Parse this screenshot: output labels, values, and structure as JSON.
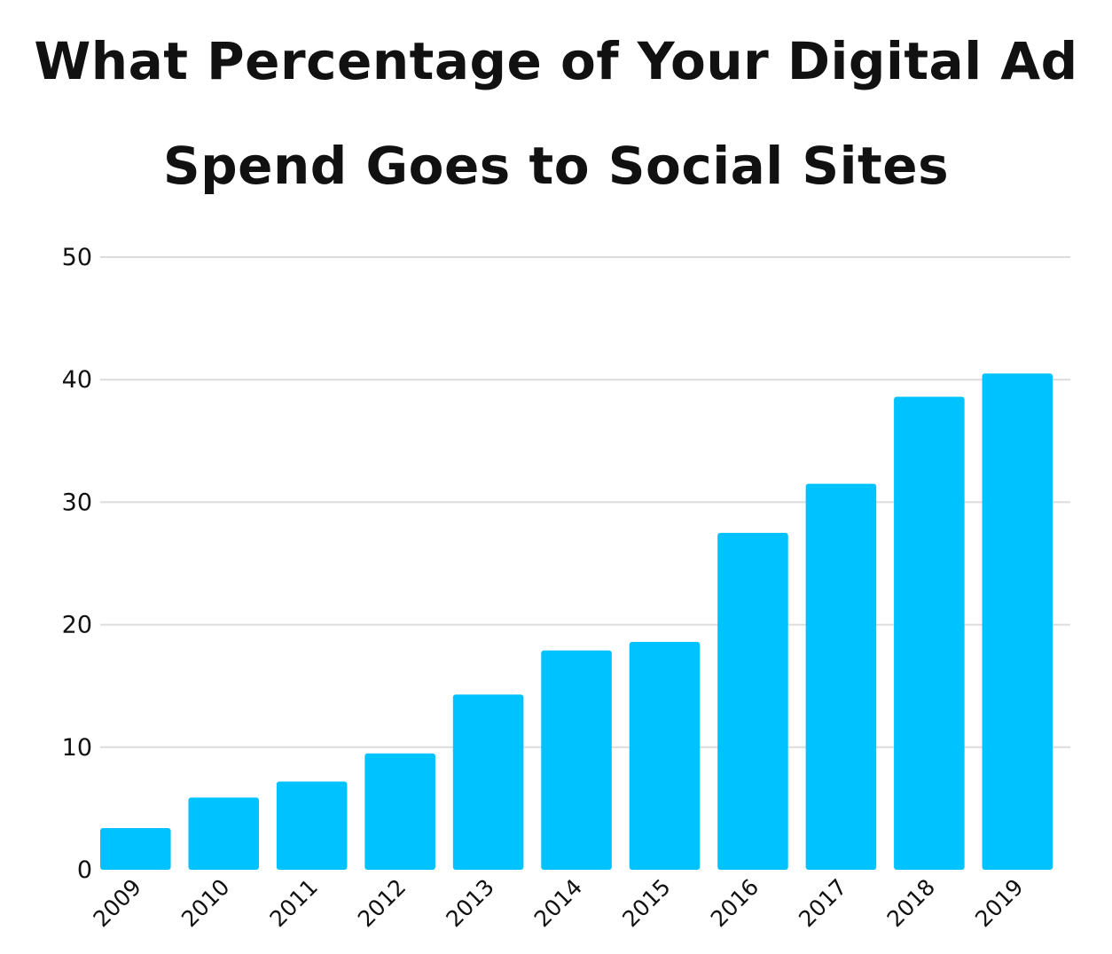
{
  "chart_data": {
    "type": "bar",
    "title_lines": [
      "What Percentage of Your Digital Ad",
      "Spend Goes to Social Sites"
    ],
    "categories": [
      "2009",
      "2010",
      "2011",
      "2012",
      "2013",
      "2014",
      "2015",
      "2016",
      "2017",
      "2018",
      "2019"
    ],
    "values": [
      3.4,
      5.9,
      7.2,
      9.5,
      14.3,
      17.9,
      18.6,
      27.5,
      31.5,
      38.6,
      40.5
    ],
    "ylim": [
      0,
      50
    ],
    "yticks": [
      "0",
      "10",
      "20",
      "30",
      "40",
      "50"
    ],
    "grid": true,
    "bar_color": "#00c2ff",
    "grid_color": "#dcdcdc"
  }
}
